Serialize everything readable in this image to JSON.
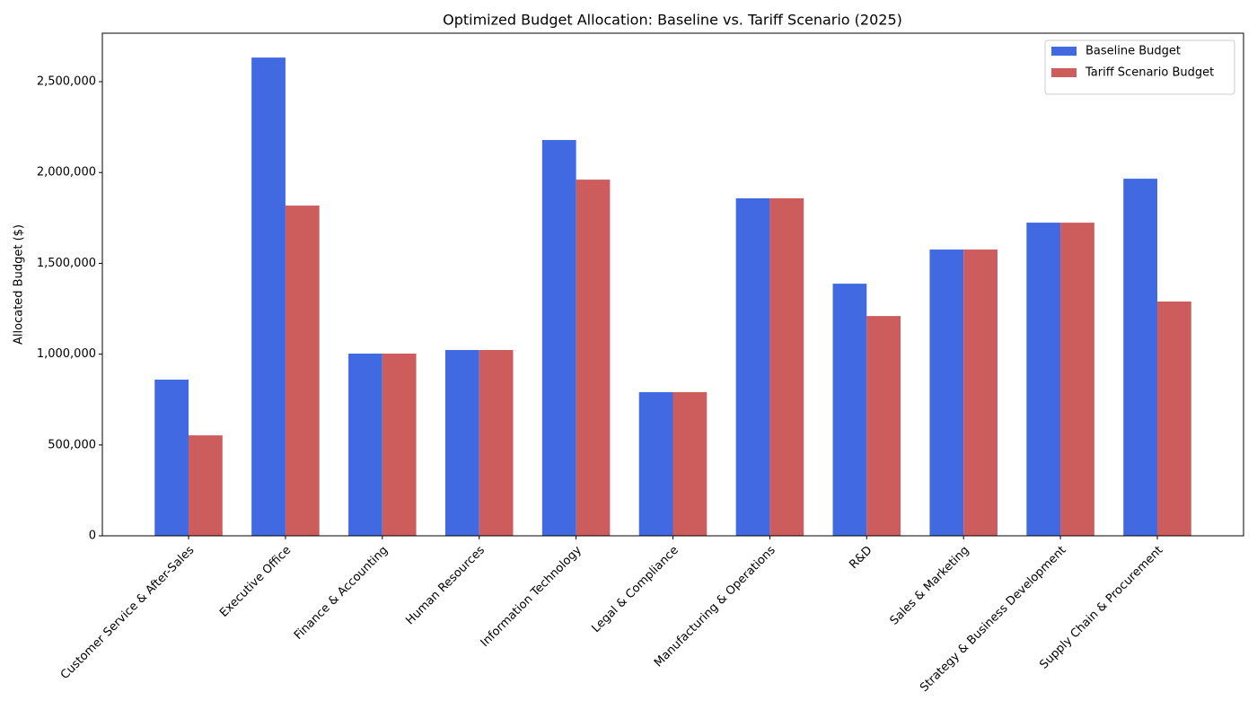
{
  "chart_data": {
    "type": "bar",
    "title": "Optimized Budget Allocation: Baseline vs. Tariff Scenario (2025)",
    "y_label": "Allocated Budget ($)",
    "categories": [
      "Customer Service & After-Sales",
      "Executive Office",
      "Finance & Accounting",
      "Human Resources",
      "Information Technology",
      "Legal & Compliance",
      "Manufacturing & Operations",
      "R&D",
      "Sales & Marketing",
      "Strategy & Business Development",
      "Supply Chain & Procurement"
    ],
    "series": [
      {
        "name": "Baseline Budget",
        "color": "#4169e1",
        "values": [
          860000,
          2633000,
          1003000,
          1023000,
          2179000,
          791000,
          1858000,
          1388000,
          1576000,
          1724000,
          1966000
        ]
      },
      {
        "name": "Tariff Scenario Budget",
        "color": "#cd5c5c",
        "values": [
          553000,
          1818000,
          1003000,
          1023000,
          1961000,
          791000,
          1858000,
          1210000,
          1576000,
          1724000,
          1290000
        ]
      }
    ],
    "ylim": [
      0,
      2767000
    ],
    "yticks": [
      0,
      {
        "value": 500000,
        "label": "500,000"
      },
      {
        "value": 1000000,
        "label": "1,000,000"
      },
      {
        "value": 1500000,
        "label": "1,500,000"
      },
      {
        "value": 2000000,
        "label": "2,000,000"
      },
      {
        "value": 2500000,
        "label": "2,500,000"
      }
    ],
    "legend": "upper right",
    "grid": false
  }
}
